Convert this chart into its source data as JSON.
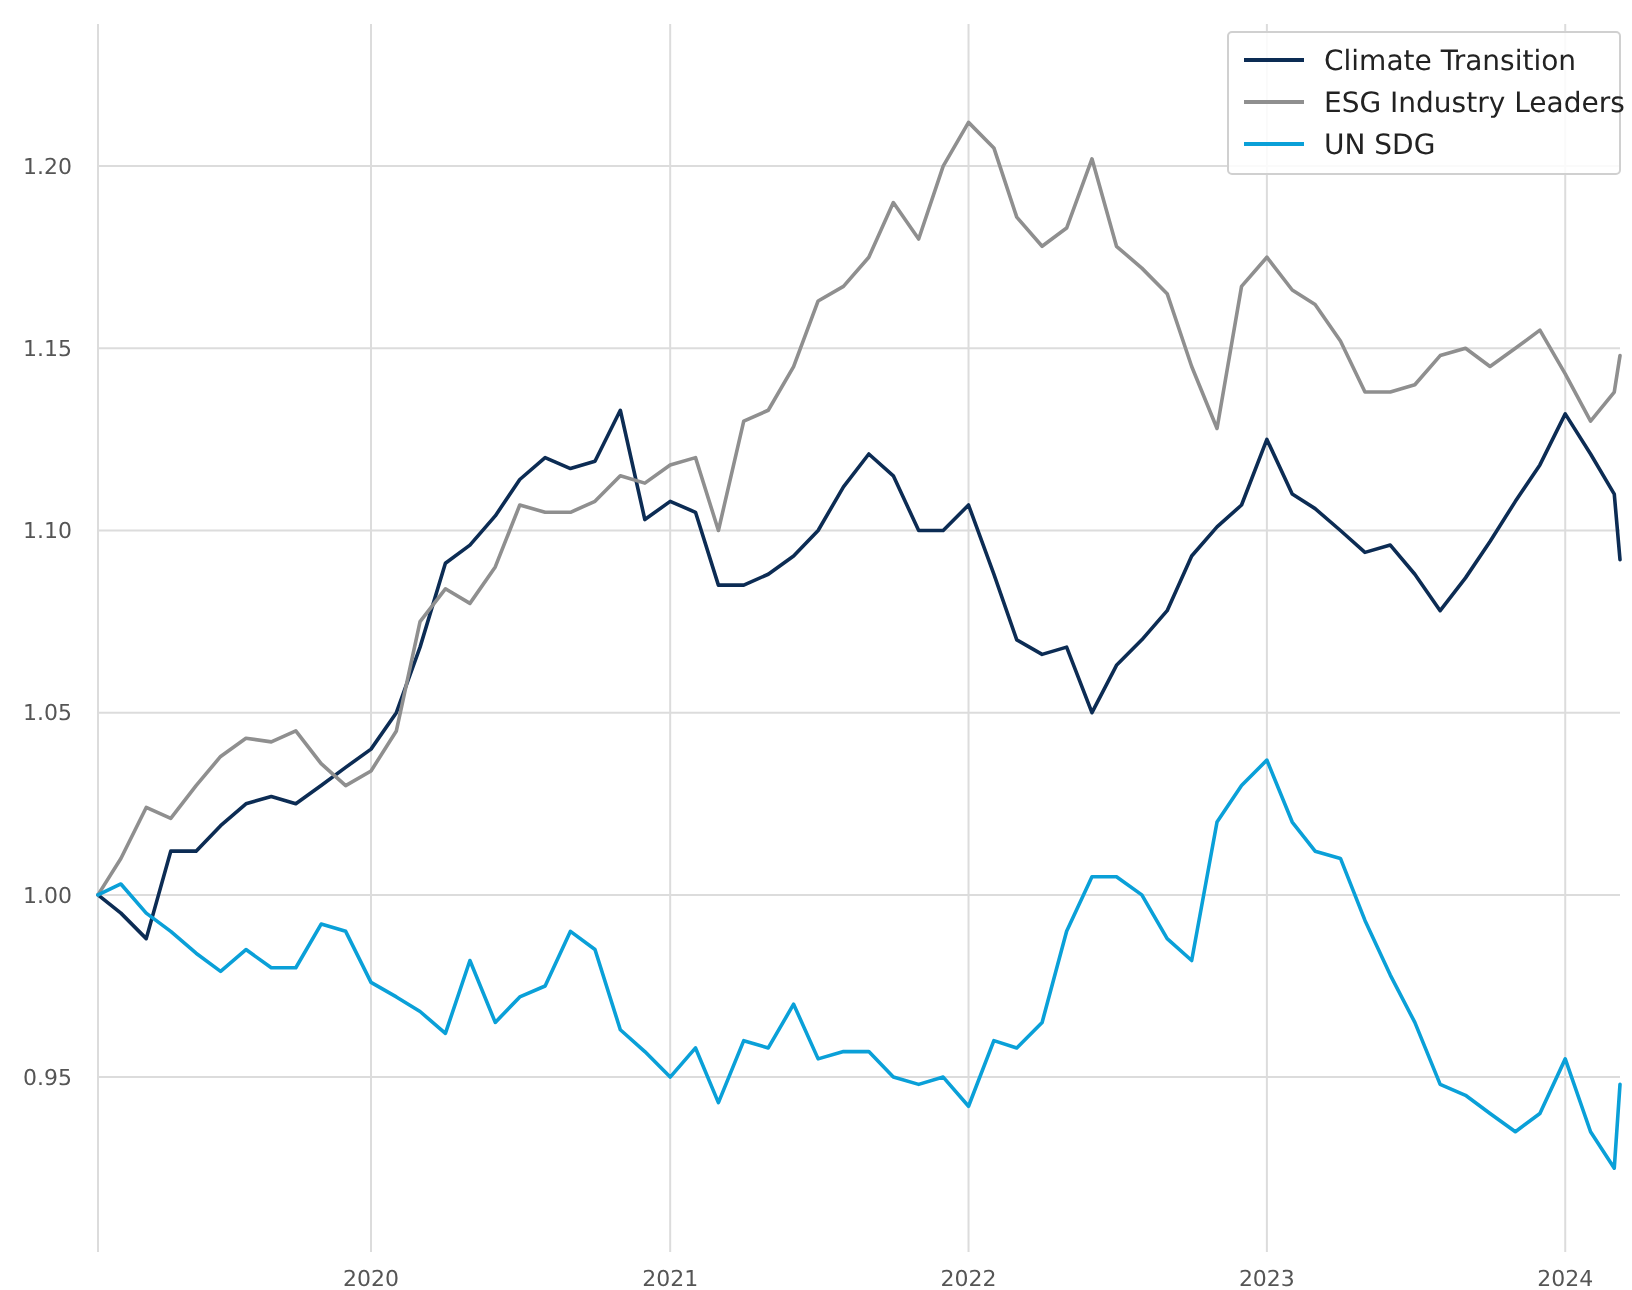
{
  "chart_data": {
    "type": "line",
    "x": [
      "2019-02-01",
      "2019-03-01",
      "2019-04-01",
      "2019-05-01",
      "2019-06-01",
      "2019-07-01",
      "2019-08-01",
      "2019-09-01",
      "2019-10-01",
      "2019-11-01",
      "2019-12-01",
      "2020-01-01",
      "2020-02-01",
      "2020-03-01",
      "2020-04-01",
      "2020-05-01",
      "2020-06-01",
      "2020-07-01",
      "2020-08-01",
      "2020-09-01",
      "2020-10-01",
      "2020-11-01",
      "2020-12-01",
      "2021-01-01",
      "2021-02-01",
      "2021-03-01",
      "2021-04-01",
      "2021-05-01",
      "2021-06-01",
      "2021-07-01",
      "2021-08-01",
      "2021-09-01",
      "2021-10-01",
      "2021-11-01",
      "2021-12-01",
      "2022-01-01",
      "2022-02-01",
      "2022-03-01",
      "2022-04-01",
      "2022-05-01",
      "2022-06-01",
      "2022-07-01",
      "2022-08-01",
      "2022-09-01",
      "2022-10-01",
      "2022-11-01",
      "2022-12-01",
      "2023-01-01",
      "2023-02-01",
      "2023-03-01",
      "2023-04-01",
      "2023-05-01",
      "2023-06-01",
      "2023-07-01",
      "2023-08-01",
      "2023-09-01",
      "2023-10-01",
      "2023-11-01",
      "2023-12-01",
      "2024-01-01",
      "2024-02-01",
      "2024-03-01",
      "2024-03-08"
    ],
    "series": [
      {
        "name": "Climate Transition",
        "color": "#0c2c54",
        "values": [
          1.0,
          0.995,
          0.988,
          1.012,
          1.012,
          1.019,
          1.025,
          1.027,
          1.025,
          1.03,
          1.035,
          1.04,
          1.05,
          1.068,
          1.091,
          1.096,
          1.104,
          1.114,
          1.12,
          1.117,
          1.119,
          1.133,
          1.103,
          1.108,
          1.105,
          1.085,
          1.085,
          1.088,
          1.093,
          1.1,
          1.112,
          1.121,
          1.115,
          1.1,
          1.1,
          1.107,
          1.088,
          1.07,
          1.066,
          1.068,
          1.05,
          1.063,
          1.07,
          1.078,
          1.093,
          1.101,
          1.107,
          1.125,
          1.11,
          1.106,
          1.1,
          1.094,
          1.096,
          1.088,
          1.078,
          1.087,
          1.097,
          1.108,
          1.118,
          1.132,
          1.121,
          1.11,
          1.092
        ]
      },
      {
        "name": "ESG Industry Leaders",
        "color": "#8f8f8f",
        "values": [
          1.0,
          1.01,
          1.024,
          1.021,
          1.03,
          1.038,
          1.043,
          1.042,
          1.045,
          1.036,
          1.03,
          1.034,
          1.045,
          1.075,
          1.084,
          1.08,
          1.09,
          1.107,
          1.105,
          1.105,
          1.108,
          1.115,
          1.113,
          1.118,
          1.12,
          1.1,
          1.13,
          1.133,
          1.145,
          1.163,
          1.167,
          1.175,
          1.19,
          1.18,
          1.2,
          1.212,
          1.205,
          1.186,
          1.178,
          1.183,
          1.202,
          1.178,
          1.172,
          1.165,
          1.145,
          1.128,
          1.167,
          1.175,
          1.166,
          1.162,
          1.152,
          1.138,
          1.138,
          1.14,
          1.148,
          1.15,
          1.145,
          1.15,
          1.155,
          1.143,
          1.13,
          1.138,
          1.148
        ]
      },
      {
        "name": "UN SDG",
        "color": "#0aa0d8",
        "values": [
          1.0,
          1.003,
          0.995,
          0.99,
          0.984,
          0.979,
          0.985,
          0.98,
          0.98,
          0.992,
          0.99,
          0.976,
          0.972,
          0.968,
          0.962,
          0.982,
          0.965,
          0.972,
          0.975,
          0.99,
          0.985,
          0.963,
          0.957,
          0.95,
          0.958,
          0.943,
          0.96,
          0.958,
          0.97,
          0.955,
          0.957,
          0.957,
          0.95,
          0.948,
          0.95,
          0.942,
          0.96,
          0.958,
          0.965,
          0.99,
          1.005,
          1.005,
          1.0,
          0.988,
          0.982,
          1.02,
          1.03,
          1.037,
          1.02,
          1.012,
          1.01,
          0.993,
          0.978,
          0.965,
          0.948,
          0.945,
          0.94,
          0.935,
          0.94,
          0.955,
          0.935,
          0.925,
          0.948
        ]
      }
    ],
    "xlim": [
      "2019-02-01",
      "2024-03-08"
    ],
    "xticks": [
      {
        "value": "2020-01-01",
        "label": "2020"
      },
      {
        "value": "2021-01-01",
        "label": "2021"
      },
      {
        "value": "2022-01-01",
        "label": "2022"
      },
      {
        "value": "2023-01-01",
        "label": "2023"
      },
      {
        "value": "2024-01-01",
        "label": "2024"
      }
    ],
    "ylim": [
      0.902,
      1.239
    ],
    "yticks": [
      {
        "value": 0.95,
        "label": "0.95"
      },
      {
        "value": 1.0,
        "label": "1.00"
      },
      {
        "value": 1.05,
        "label": "1.05"
      },
      {
        "value": 1.1,
        "label": "1.10"
      },
      {
        "value": 1.15,
        "label": "1.15"
      },
      {
        "value": 1.2,
        "label": "1.20"
      }
    ],
    "grid": true,
    "legend": "top right",
    "line_style": "solid",
    "marker": "none"
  }
}
